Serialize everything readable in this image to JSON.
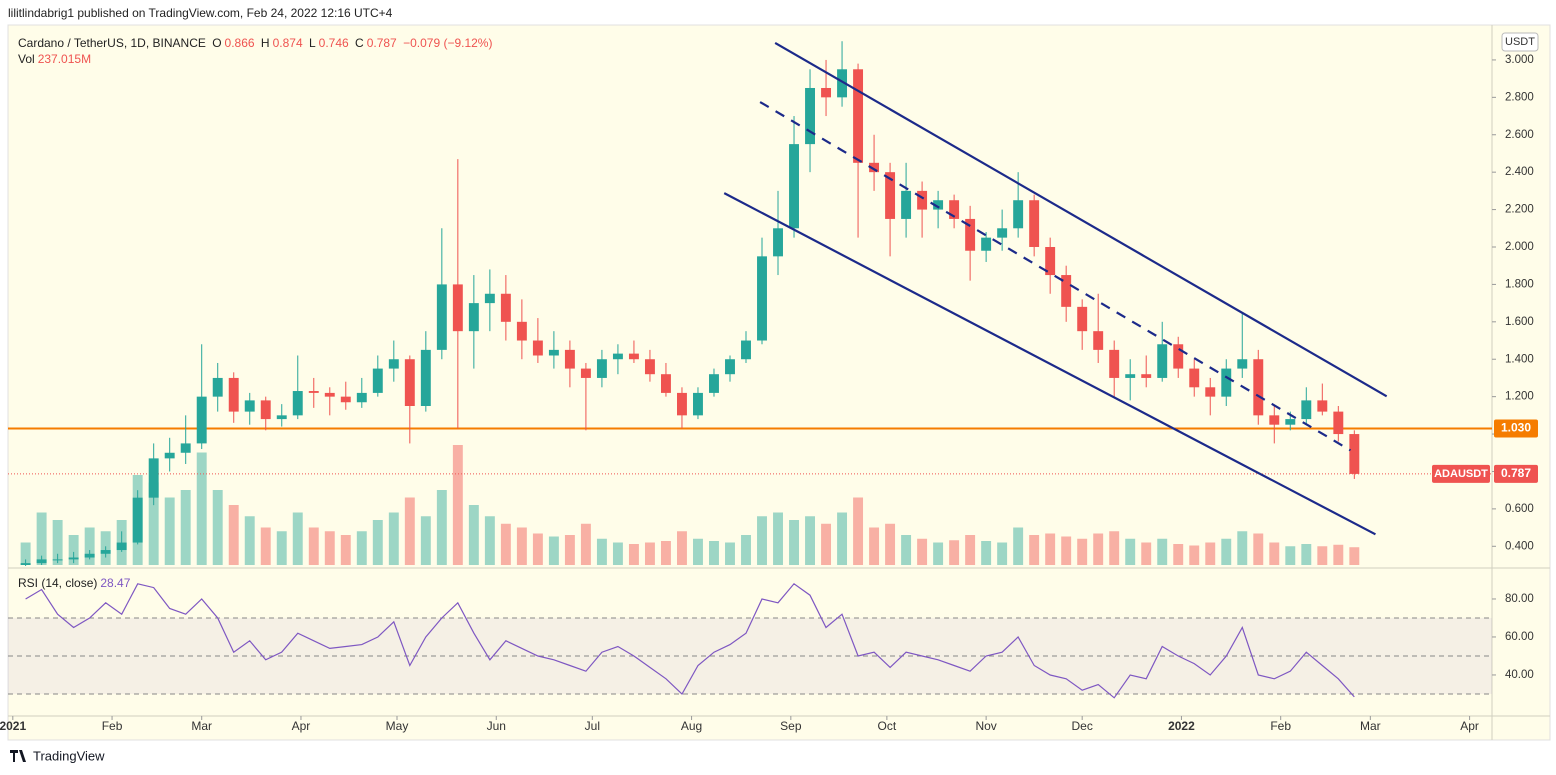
{
  "header": {
    "publisher": "lilitlindabrig1 published on TradingView.com, Feb 24, 2022 12:16 UTC+4",
    "brand": "TradingView"
  },
  "chart_data": {
    "type": "candlestick",
    "symbol": "Cardano / TetherUS, 1D, BINANCE",
    "legend": [
      "O",
      "0.866",
      "H",
      "0.874",
      "L",
      "0.746",
      "C",
      "0.787",
      "−0.079 (−9.12%)"
    ],
    "currency": "USDT",
    "x": [
      4,
      9,
      14,
      19,
      24,
      29,
      34,
      39,
      44,
      49,
      54,
      59,
      64,
      69,
      74,
      79,
      84,
      89,
      94,
      99,
      104,
      109,
      114,
      119,
      124,
      129,
      134,
      139,
      144,
      149,
      154,
      159,
      164,
      169,
      174,
      179,
      184,
      189,
      194,
      199,
      204,
      209,
      214,
      219,
      224,
      229,
      234,
      239,
      244,
      249,
      254,
      259,
      264,
      269,
      274,
      279,
      284,
      289,
      294,
      299,
      304,
      309,
      314,
      319,
      324,
      329,
      334,
      339,
      344,
      349,
      354,
      359,
      364,
      369,
      374,
      379,
      384,
      389,
      394,
      399,
      404,
      409,
      414,
      419
    ],
    "open": [
      0.3,
      0.31,
      0.33,
      0.33,
      0.34,
      0.36,
      0.38,
      0.42,
      0.66,
      0.87,
      0.9,
      0.95,
      1.2,
      1.3,
      1.12,
      1.18,
      1.08,
      1.1,
      1.23,
      1.22,
      1.2,
      1.17,
      1.22,
      1.35,
      1.4,
      1.15,
      1.45,
      1.8,
      1.55,
      1.7,
      1.75,
      1.6,
      1.5,
      1.42,
      1.45,
      1.35,
      1.3,
      1.4,
      1.43,
      1.4,
      1.32,
      1.22,
      1.1,
      1.22,
      1.32,
      1.4,
      1.5,
      1.95,
      2.1,
      2.55,
      2.85,
      2.8,
      2.95,
      2.45,
      2.4,
      2.15,
      2.3,
      2.2,
      2.25,
      2.15,
      1.98,
      2.05,
      2.1,
      2.25,
      2.0,
      1.85,
      1.68,
      1.55,
      1.45,
      1.3,
      1.32,
      1.3,
      1.48,
      1.35,
      1.25,
      1.2,
      1.35,
      1.4,
      1.1,
      1.05,
      1.08,
      1.18,
      1.12,
      1.0
    ],
    "high": [
      0.33,
      0.35,
      0.36,
      0.37,
      0.38,
      0.4,
      0.48,
      0.7,
      0.95,
      0.98,
      1.1,
      1.48,
      1.38,
      1.33,
      1.22,
      1.2,
      1.16,
      1.42,
      1.3,
      1.25,
      1.28,
      1.3,
      1.42,
      1.5,
      1.42,
      1.55,
      2.1,
      2.47,
      1.85,
      1.88,
      1.85,
      1.72,
      1.62,
      1.55,
      1.5,
      1.38,
      1.45,
      1.48,
      1.5,
      1.45,
      1.38,
      1.25,
      1.25,
      1.35,
      1.42,
      1.55,
      2.05,
      2.3,
      2.7,
      2.95,
      3.0,
      3.1,
      2.98,
      2.6,
      2.45,
      2.45,
      2.35,
      2.3,
      2.28,
      2.22,
      2.08,
      2.2,
      2.4,
      2.28,
      2.05,
      1.9,
      1.72,
      1.75,
      1.5,
      1.4,
      1.42,
      1.6,
      1.52,
      1.4,
      1.3,
      1.4,
      1.65,
      1.45,
      1.15,
      1.12,
      1.25,
      1.27,
      1.15,
      1.02
    ],
    "low": [
      0.29,
      0.3,
      0.31,
      0.31,
      0.33,
      0.34,
      0.37,
      0.41,
      0.62,
      0.8,
      0.84,
      0.92,
      1.12,
      1.06,
      1.05,
      1.02,
      1.04,
      1.08,
      1.14,
      1.1,
      1.13,
      1.14,
      1.2,
      1.28,
      0.95,
      1.12,
      1.4,
      1.03,
      1.35,
      1.55,
      1.5,
      1.4,
      1.38,
      1.35,
      1.25,
      1.02,
      1.25,
      1.32,
      1.38,
      1.28,
      1.2,
      1.03,
      1.08,
      1.2,
      1.28,
      1.38,
      1.48,
      1.85,
      2.05,
      2.4,
      2.7,
      2.75,
      2.05,
      2.3,
      1.95,
      2.05,
      2.05,
      2.1,
      2.1,
      1.82,
      1.92,
      1.98,
      2.05,
      1.95,
      1.75,
      1.6,
      1.45,
      1.38,
      1.2,
      1.18,
      1.25,
      1.28,
      1.3,
      1.2,
      1.1,
      1.15,
      1.3,
      1.05,
      0.95,
      1.02,
      1.05,
      1.1,
      0.96,
      0.76
    ],
    "close": [
      0.31,
      0.33,
      0.33,
      0.34,
      0.36,
      0.38,
      0.42,
      0.66,
      0.87,
      0.9,
      0.95,
      1.2,
      1.3,
      1.12,
      1.18,
      1.08,
      1.1,
      1.23,
      1.22,
      1.2,
      1.17,
      1.22,
      1.35,
      1.4,
      1.15,
      1.45,
      1.8,
      1.55,
      1.7,
      1.75,
      1.6,
      1.5,
      1.42,
      1.45,
      1.35,
      1.3,
      1.4,
      1.43,
      1.4,
      1.32,
      1.22,
      1.1,
      1.22,
      1.32,
      1.4,
      1.5,
      1.95,
      2.1,
      2.55,
      2.85,
      2.8,
      2.95,
      2.45,
      2.4,
      2.15,
      2.3,
      2.2,
      2.25,
      2.15,
      1.98,
      2.05,
      2.1,
      2.25,
      2.0,
      1.85,
      1.68,
      1.55,
      1.45,
      1.3,
      1.32,
      1.3,
      1.48,
      1.35,
      1.25,
      1.2,
      1.35,
      1.4,
      1.1,
      1.05,
      1.08,
      1.18,
      1.12,
      1.0,
      0.787
    ],
    "up_color": "#26a69a",
    "down_color": "#ef5350",
    "xlim": [
      -1.5,
      462
    ],
    "xticks": [
      {
        "value": 0,
        "label": "2021"
      },
      {
        "value": 31,
        "label": "Feb"
      },
      {
        "value": 59,
        "label": "Mar"
      },
      {
        "value": 90,
        "label": "Apr"
      },
      {
        "value": 120,
        "label": "May"
      },
      {
        "value": 151,
        "label": "Jun"
      },
      {
        "value": 181,
        "label": "Jul"
      },
      {
        "value": 212,
        "label": "Aug"
      },
      {
        "value": 243,
        "label": "Sep"
      },
      {
        "value": 273,
        "label": "Oct"
      },
      {
        "value": 304,
        "label": "Nov"
      },
      {
        "value": 334,
        "label": "Dec"
      },
      {
        "value": 365,
        "label": "2022"
      },
      {
        "value": 396,
        "label": "Feb"
      },
      {
        "value": 424,
        "label": "Mar"
      },
      {
        "value": 455,
        "label": "Apr"
      }
    ],
    "ylim": [
      0.3,
      3.16
    ],
    "yticks": [
      {
        "value": 0.4,
        "label": "0.400"
      },
      {
        "value": 0.6,
        "label": "0.600"
      },
      {
        "value": 0.8,
        "label": "0.800"
      },
      {
        "value": 1.0,
        "label": "1.000"
      },
      {
        "value": 1.2,
        "label": "1.200"
      },
      {
        "value": 1.4,
        "label": "1.400"
      },
      {
        "value": 1.6,
        "label": "1.600"
      },
      {
        "value": 1.8,
        "label": "1.800"
      },
      {
        "value": 2.0,
        "label": "2.000"
      },
      {
        "value": 2.2,
        "label": "2.200"
      },
      {
        "value": 2.4,
        "label": "2.400"
      },
      {
        "value": 2.6,
        "label": "2.600"
      },
      {
        "value": 2.8,
        "label": "2.800"
      },
      {
        "value": 3.0,
        "label": "3.000"
      }
    ],
    "volume": {
      "name": "Vol",
      "label": "237.015M",
      "values": [
        300,
        700,
        600,
        400,
        500,
        450,
        600,
        1200,
        1100,
        900,
        1000,
        1500,
        1000,
        800,
        650,
        500,
        450,
        700,
        500,
        450,
        400,
        450,
        600,
        700,
        900,
        650,
        1000,
        1600,
        800,
        650,
        550,
        500,
        420,
        380,
        400,
        550,
        350,
        300,
        280,
        300,
        320,
        450,
        350,
        320,
        300,
        400,
        650,
        700,
        600,
        650,
        550,
        700,
        900,
        500,
        550,
        400,
        350,
        300,
        330,
        400,
        320,
        300,
        500,
        400,
        420,
        380,
        350,
        420,
        450,
        350,
        300,
        350,
        280,
        260,
        300,
        350,
        450,
        420,
        300,
        250,
        280,
        250,
        270,
        237.015
      ]
    },
    "level": {
      "value": 1.03,
      "label": "1.030",
      "color": "#f57c00"
    },
    "last_price": {
      "name": "ADAUSDT",
      "value": 0.787,
      "color": "#ef5350"
    },
    "channel_color": "#1c2a8a",
    "channel": [
      {
        "style": "solid",
        "x": [
          238.1,
          429.1
        ],
        "y": [
          3.091,
          1.202
        ]
      },
      {
        "style": "solid",
        "x": [
          222.2,
          425.6
        ],
        "y": [
          2.288,
          0.464
        ]
      },
      {
        "style": "dashed",
        "x": [
          233.4,
          417.8
        ],
        "y": [
          2.775,
          0.913
        ]
      }
    ],
    "rsi": {
      "name": "RSI (14, close)",
      "color": "#7e57c2",
      "ylim": [
        20.5,
        94.2
      ],
      "yticks": [
        {
          "value": 40,
          "label": "40.00"
        },
        {
          "value": 60,
          "label": "60.00"
        },
        {
          "value": 80,
          "label": "80.00"
        }
      ],
      "levels": [
        30,
        50,
        70
      ],
      "values": [
        80,
        85,
        72,
        65,
        70,
        78,
        72,
        88,
        86,
        75,
        72,
        80,
        70,
        52,
        58,
        48,
        52,
        62,
        58,
        54,
        55,
        56,
        60,
        68,
        45,
        60,
        70,
        78,
        62,
        48,
        58,
        54,
        50,
        48,
        45,
        42,
        52,
        55,
        50,
        44,
        38,
        30,
        45,
        52,
        56,
        62,
        80,
        78,
        88,
        82,
        65,
        72,
        50,
        52,
        44,
        52,
        50,
        48,
        45,
        42,
        50,
        52,
        60,
        45,
        40,
        38,
        32,
        35,
        28,
        40,
        38,
        55,
        50,
        46,
        40,
        50,
        65,
        40,
        38,
        42,
        52,
        45,
        38,
        28.47
      ]
    }
  }
}
